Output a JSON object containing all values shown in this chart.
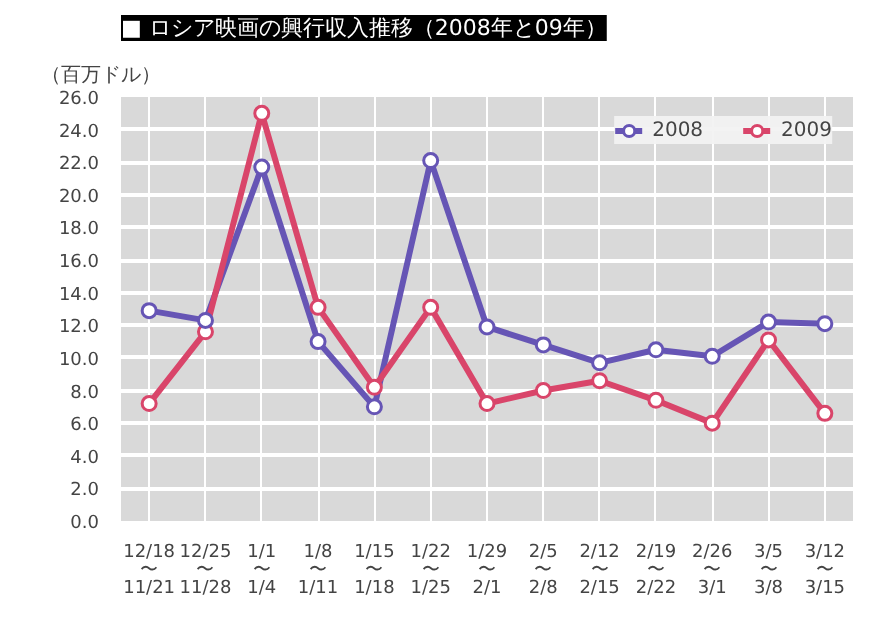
{
  "chart_data": {
    "type": "line",
    "title": "■ ロシア映画の興行収入推移（2008年と09年）",
    "ylabel": "（百万ドル）",
    "categories": [
      "12/18\n〜\n11/21",
      "12/25\n〜\n11/28",
      "1/1\n〜\n1/4",
      "1/8\n〜\n1/11",
      "1/15\n〜\n1/18",
      "1/22\n〜\n1/25",
      "1/29\n〜\n2/1",
      "2/5\n〜\n2/8",
      "2/12\n〜\n2/15",
      "2/19\n〜\n2/22",
      "2/26\n〜\n3/1",
      "3/5\n〜\n3/8",
      "3/12\n〜\n3/15"
    ],
    "series": [
      {
        "name": "2008",
        "color": "#6655b5",
        "values": [
          12.9,
          12.3,
          21.7,
          11.0,
          7.0,
          22.1,
          11.9,
          10.8,
          9.7,
          10.5,
          10.1,
          12.2,
          12.1
        ]
      },
      {
        "name": "2009",
        "color": "#d9456a",
        "values": [
          7.2,
          11.6,
          25.0,
          13.1,
          8.2,
          13.1,
          7.2,
          8.0,
          8.6,
          7.4,
          6.0,
          11.1,
          6.6
        ]
      }
    ],
    "ylim": [
      0,
      26
    ],
    "yticks": [
      {
        "value": 0,
        "label": "0.0"
      },
      {
        "value": 2,
        "label": "2.0"
      },
      {
        "value": 4,
        "label": "4.0"
      },
      {
        "value": 6,
        "label": "6.0"
      },
      {
        "value": 8,
        "label": "8.0"
      },
      {
        "value": 10,
        "label": "10.0"
      },
      {
        "value": 12,
        "label": "12.0"
      },
      {
        "value": 14,
        "label": "14.0"
      },
      {
        "value": 16,
        "label": "16.0"
      },
      {
        "value": 18,
        "label": "18.0"
      },
      {
        "value": 20,
        "label": "20.0"
      },
      {
        "value": 22,
        "label": "22.0"
      },
      {
        "value": 24,
        "label": "24.0"
      },
      {
        "value": 26,
        "label": "26.0"
      }
    ],
    "grid": true,
    "legend": "top right",
    "marker": "circle",
    "line_style": "solid"
  }
}
